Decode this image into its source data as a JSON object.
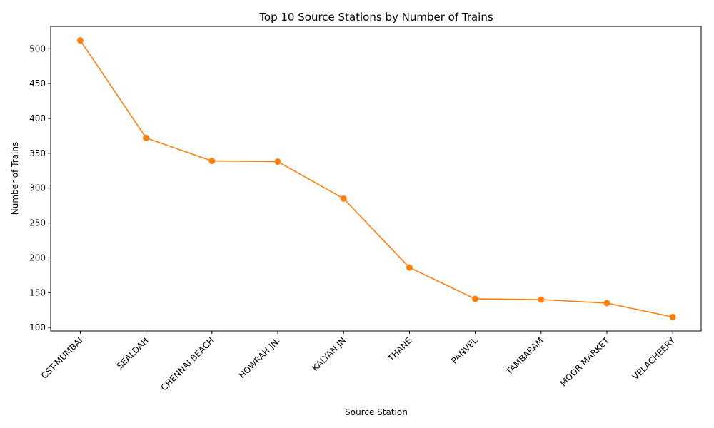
{
  "chart_data": {
    "type": "line",
    "title": "Top 10 Source Stations by Number of Trains",
    "xlabel": "Source Station",
    "ylabel": "Number of Trains",
    "categories": [
      "CST-MUMBAI",
      "SEALDAH",
      "CHENNAI BEACH",
      "HOWRAH JN.",
      "KALYAN JN",
      "THANE",
      "PANVEL",
      "TAMBARAM",
      "MOOR MARKET",
      "VELACHEERY"
    ],
    "values": [
      512,
      372,
      339,
      338,
      285,
      186,
      141,
      140,
      135,
      115
    ],
    "ylim": [
      95,
      532
    ],
    "yticks": [
      100,
      150,
      200,
      250,
      300,
      350,
      400,
      450,
      500
    ],
    "grid": false,
    "color": "#ff7f0e"
  }
}
